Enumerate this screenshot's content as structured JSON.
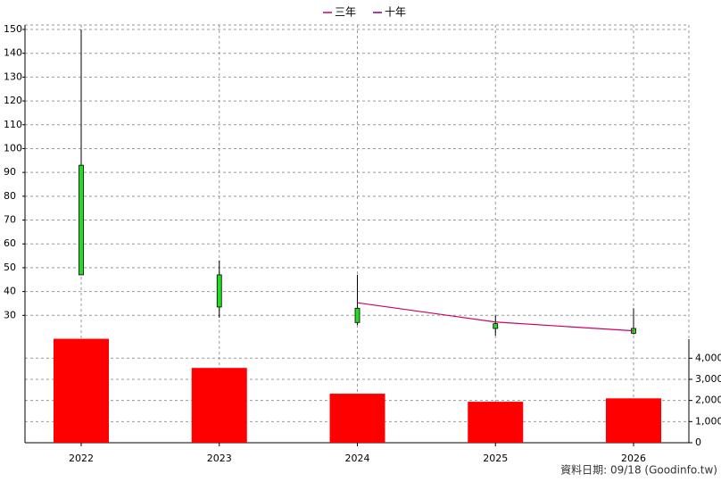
{
  "chart_data": {
    "type": "candlestick",
    "categories": [
      "2022",
      "2023",
      "2024",
      "2025",
      "2026"
    ],
    "open": [
      47,
      33.5,
      27,
      24.5,
      22.5
    ],
    "high": [
      150,
      53,
      47,
      30,
      33
    ],
    "low": [
      47,
      29,
      26,
      21.5,
      22
    ],
    "close": [
      93,
      47,
      33,
      26.5,
      24.5
    ],
    "candle_color": "#22dd22",
    "lines": [
      {
        "name": "三年",
        "color": "#cc0066",
        "values": [
          null,
          null,
          35.3,
          27.2,
          23.5
        ]
      },
      {
        "name": "十年",
        "color": "#800080",
        "values": [
          null,
          null,
          null,
          null,
          null
        ]
      }
    ],
    "ylim": [
      20,
      150
    ],
    "yticks": [
      30,
      40,
      50,
      60,
      70,
      80,
      90,
      100,
      110,
      120,
      130,
      140,
      150
    ],
    "volume": {
      "color": "#ff0000",
      "values": [
        4920,
        3540,
        2320,
        1940,
        2100
      ]
    },
    "y2lim": [
      0,
      4900
    ],
    "y2ticks": [
      0,
      {
        "value": 1000,
        "label": "1,000"
      },
      {
        "value": 2000,
        "label": "2,000"
      },
      {
        "value": 3000,
        "label": "3,000"
      },
      {
        "value": 4000,
        "label": "4,000"
      }
    ],
    "grid": true,
    "footer": "資料日期: 09/18  (Goodinfo.tw)"
  }
}
